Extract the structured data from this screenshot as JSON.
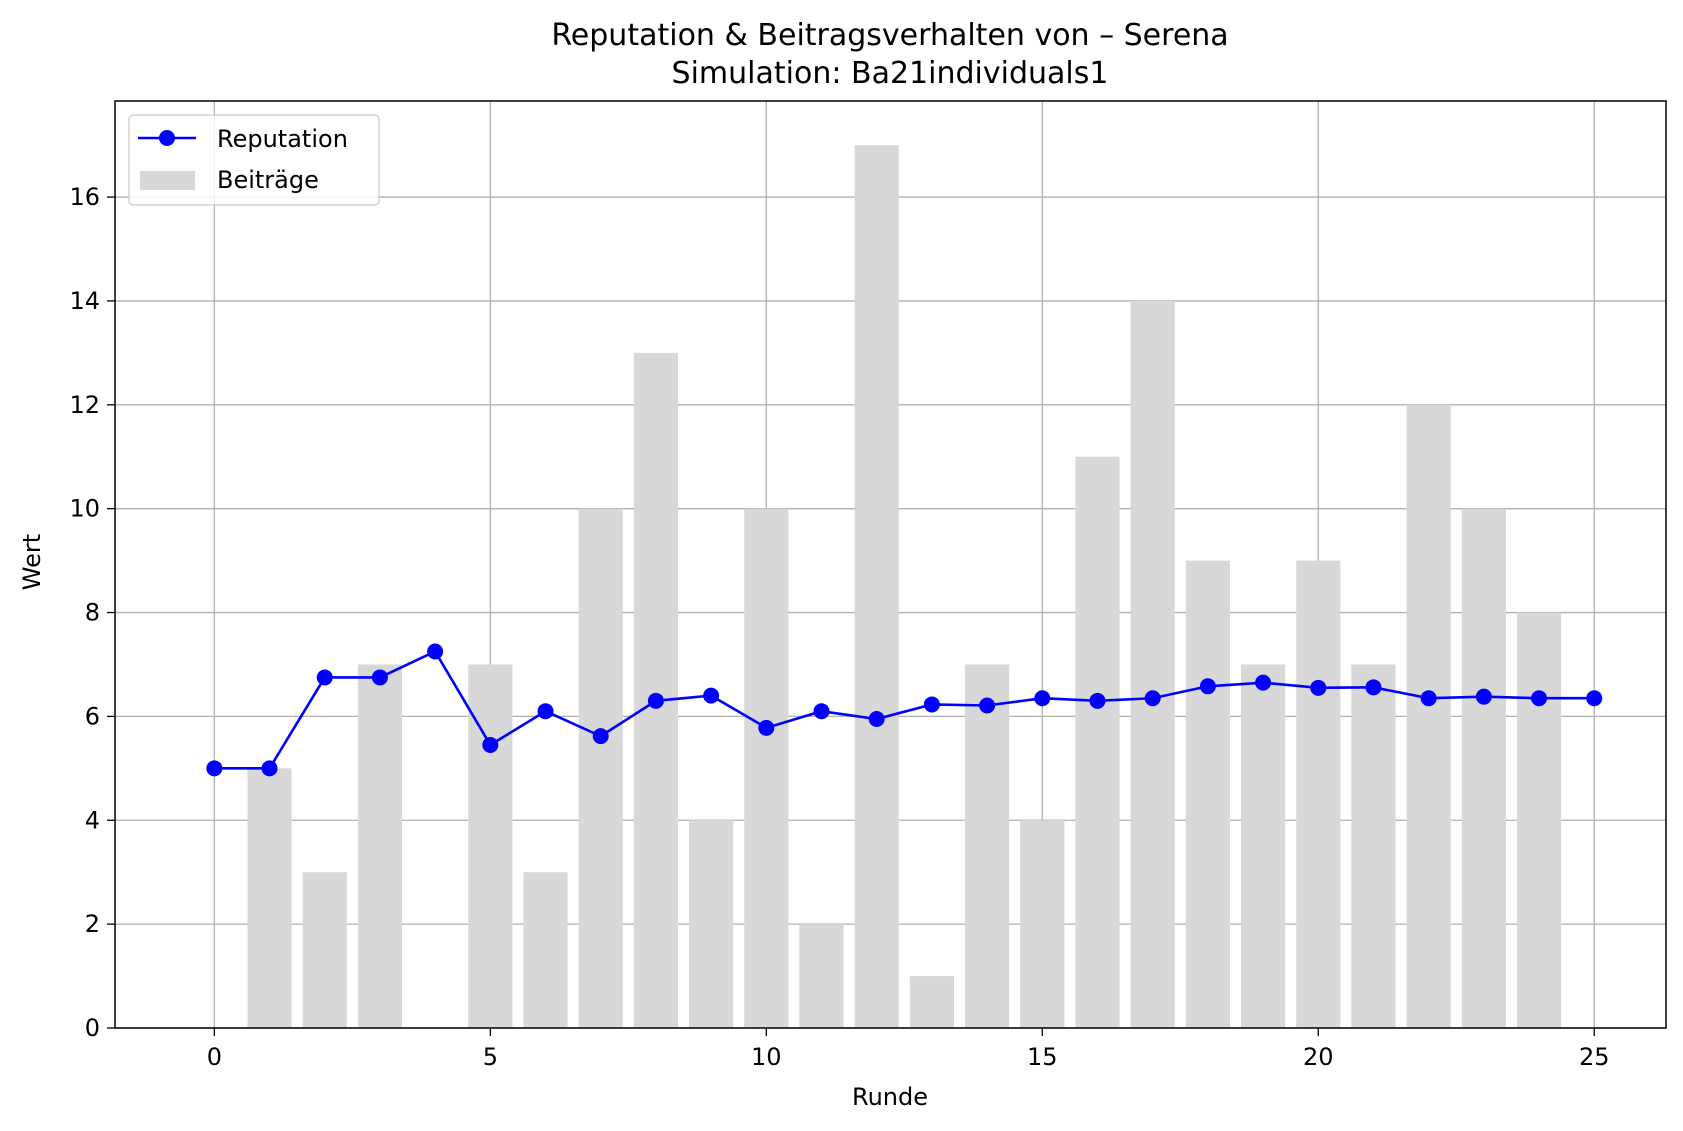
{
  "chart_data": {
    "type": "bar+line",
    "title": "Reputation & Beitragsverhalten von – Serena",
    "subtitle": "Simulation: Ba21individuals1",
    "xlabel": "Runde",
    "ylabel": "Wert",
    "xlim": [
      -1.8,
      26.3
    ],
    "ylim": [
      0,
      17.85
    ],
    "xticks": [
      0,
      5,
      10,
      15,
      20,
      25
    ],
    "yticks": [
      0,
      2,
      4,
      6,
      8,
      10,
      12,
      14,
      16
    ],
    "grid": true,
    "legend_position": "upper-left",
    "series": [
      {
        "name": "Reputation",
        "kind": "line",
        "marker": "circle",
        "color": "#0000ff",
        "x": [
          0,
          1,
          2,
          3,
          4,
          5,
          6,
          7,
          8,
          9,
          10,
          11,
          12,
          13,
          14,
          15,
          16,
          17,
          18,
          19,
          20,
          21,
          22,
          23,
          24,
          25
        ],
        "values": [
          5.0,
          5.0,
          6.75,
          6.75,
          7.25,
          5.45,
          6.1,
          5.62,
          6.3,
          6.4,
          5.78,
          6.1,
          5.95,
          6.23,
          6.21,
          6.35,
          6.3,
          6.35,
          6.58,
          6.65,
          6.55,
          6.56,
          6.35,
          6.38,
          6.35,
          6.35
        ]
      },
      {
        "name": "Beiträge",
        "kind": "bar",
        "color": "#d8d8d8",
        "x": [
          1,
          2,
          3,
          4,
          5,
          6,
          7,
          8,
          9,
          10,
          11,
          12,
          13,
          14,
          15,
          16,
          17,
          18,
          19,
          20,
          21,
          22,
          23,
          24
        ],
        "values": [
          5,
          3,
          7,
          0,
          7,
          3,
          10,
          13,
          4,
          10,
          2,
          17,
          1,
          7,
          4,
          11,
          14,
          9,
          7,
          9,
          7,
          12,
          10,
          8
        ],
        "bar_width": 0.8
      }
    ]
  }
}
